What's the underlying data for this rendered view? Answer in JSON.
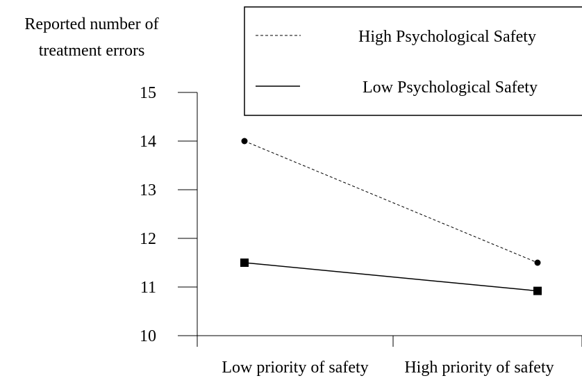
{
  "chart_data": {
    "type": "line",
    "ylabel_lines": [
      "Reported number of",
      "treatment errors"
    ],
    "categories": [
      "Low priority of safety",
      "High priority of safety"
    ],
    "ylim": [
      10,
      15
    ],
    "yticks": [
      "10",
      "11",
      "12",
      "13",
      "14",
      "15"
    ],
    "grid": false,
    "legend_position": "top-right",
    "series": [
      {
        "name": "High Psychological Safety",
        "values": [
          14.0,
          11.5
        ],
        "line_style": "dashed",
        "marker": "circle",
        "color": "#000000"
      },
      {
        "name": "Low Psychological Safety",
        "values": [
          11.5,
          10.92
        ],
        "line_style": "solid",
        "marker": "square",
        "color": "#000000"
      }
    ]
  }
}
